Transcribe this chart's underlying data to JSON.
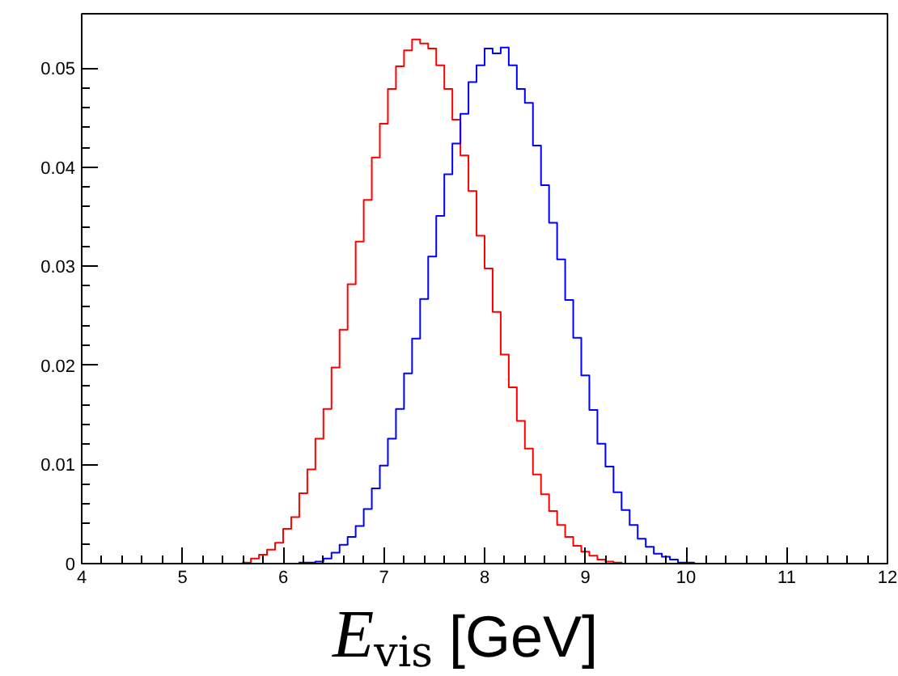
{
  "chart_data": {
    "type": "histogram",
    "xlabel": "E$_{vis}$ [GeV]",
    "bins": [
      4.0,
      4.08,
      4.16,
      4.24,
      4.32,
      4.4,
      4.48,
      4.56,
      4.64,
      4.72,
      4.8,
      4.88,
      4.96,
      5.04,
      5.12,
      5.2,
      5.28,
      5.36,
      5.44,
      5.52,
      5.6,
      5.68,
      5.76,
      5.84,
      5.92,
      6.0,
      6.08,
      6.16,
      6.24,
      6.32,
      6.4,
      6.48,
      6.56,
      6.64,
      6.72,
      6.8,
      6.88,
      6.96,
      7.04,
      7.12,
      7.2,
      7.28,
      7.36,
      7.44,
      7.52,
      7.6,
      7.68,
      7.76,
      7.84,
      7.92,
      8.0,
      8.08,
      8.16,
      8.24,
      8.32,
      8.4,
      8.48,
      8.56,
      8.64,
      8.72,
      8.8,
      8.88,
      8.96,
      9.04,
      9.12,
      9.2,
      9.28,
      9.36,
      9.44,
      9.52,
      9.6,
      9.68,
      9.76,
      9.84,
      9.92,
      10.0,
      10.08,
      10.16,
      10.24,
      10.32,
      10.4,
      10.48,
      10.56,
      10.64,
      10.72,
      10.8,
      10.88,
      10.96,
      11.04,
      11.12,
      11.2,
      11.28,
      11.36,
      11.44,
      11.52,
      11.6,
      11.68,
      11.76,
      11.84,
      11.92,
      12.0
    ],
    "series": [
      {
        "color": "#ff0000",
        "values": [
          0,
          0,
          0,
          0,
          0,
          0,
          0,
          0,
          0,
          0,
          0,
          0,
          0,
          0,
          0,
          0,
          0,
          0,
          0,
          0,
          0.0001,
          0.0005,
          0.0009,
          0.0014,
          0.0021,
          0.0035,
          0.0047,
          0.0071,
          0.0095,
          0.0126,
          0.0156,
          0.0198,
          0.0236,
          0.0282,
          0.0325,
          0.0367,
          0.041,
          0.0444,
          0.0479,
          0.0502,
          0.0518,
          0.0529,
          0.0525,
          0.052,
          0.0503,
          0.0479,
          0.0448,
          0.0412,
          0.0376,
          0.0331,
          0.0298,
          0.0254,
          0.0211,
          0.0178,
          0.0144,
          0.0116,
          0.009,
          0.007,
          0.0053,
          0.0039,
          0.0027,
          0.0018,
          0.0012,
          0.0008,
          0.0004,
          0.0002,
          0.0001,
          0,
          0,
          0,
          0,
          0,
          0,
          0,
          0,
          0,
          0,
          0,
          0,
          0,
          0,
          0,
          0,
          0,
          0,
          0,
          0,
          0,
          0,
          0,
          0,
          0,
          0,
          0,
          0,
          0,
          0,
          0,
          0,
          0
        ]
      },
      {
        "color": "#0000ff",
        "values": [
          0,
          0,
          0,
          0,
          0,
          0,
          0,
          0,
          0,
          0,
          0,
          0,
          0,
          0,
          0,
          0,
          0,
          0,
          0,
          0,
          0,
          0,
          0,
          0,
          0,
          0,
          0,
          0.0001,
          0.0001,
          0.0002,
          0.0005,
          0.0011,
          0.0019,
          0.0027,
          0.0038,
          0.0055,
          0.0076,
          0.0099,
          0.0126,
          0.0156,
          0.0192,
          0.0227,
          0.0267,
          0.031,
          0.0351,
          0.0393,
          0.0424,
          0.0454,
          0.0486,
          0.0503,
          0.052,
          0.0515,
          0.0521,
          0.0503,
          0.0479,
          0.0465,
          0.0422,
          0.0382,
          0.0344,
          0.0307,
          0.0266,
          0.0228,
          0.019,
          0.0155,
          0.0121,
          0.0098,
          0.0072,
          0.0054,
          0.0039,
          0.0025,
          0.0017,
          0.001,
          0.0007,
          0.0004,
          0.0001,
          0.0001,
          0,
          0,
          0,
          0,
          0,
          0,
          0,
          0,
          0,
          0,
          0,
          0,
          0,
          0,
          0,
          0,
          0,
          0,
          0,
          0,
          0,
          0,
          0,
          0
        ]
      }
    ],
    "xlim": [
      4,
      12
    ],
    "ylim": [
      0,
      0.0555
    ],
    "xticks": [
      4,
      5,
      6,
      7,
      8,
      9,
      10,
      11,
      12
    ],
    "yticks": [
      0,
      0.01,
      0.02,
      0.03,
      0.04,
      0.05
    ],
    "grid": false
  }
}
